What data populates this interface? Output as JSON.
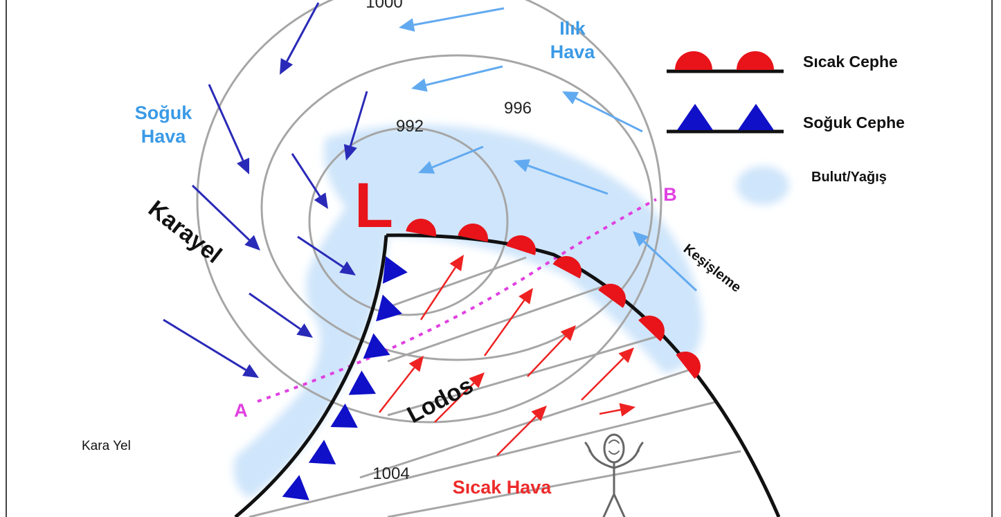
{
  "colors": {
    "isobar": "#a6a6a6",
    "cloud": "#cfe5fb",
    "warm_front": "#e8141a",
    "cold_front": "#1010c8",
    "cold_arrow": "#2a2ab8",
    "warm_arrow": "#ee2222",
    "moist_arrow": "#62aaf0",
    "section_line": "#e040e0",
    "air_label_blue": "#3a9ae6",
    "warm_label": "#ee2a2a",
    "black": "#111111"
  },
  "isobars": {
    "i992": "992",
    "i996": "996",
    "i1000": "1000",
    "i1004": "1004"
  },
  "low_symbol": "L",
  "labels": {
    "warm_air": "Ilık Hava",
    "cold_air": "Soğuk Hava",
    "karayel": "Karayel",
    "lodos": "Lodos",
    "kesisme": "Keşişleme",
    "kara_yel": "Kara Yel",
    "hot_air": "Sıcak Hava",
    "point_a": "A",
    "point_b": "B"
  },
  "legend": {
    "warm_front": "Sıcak Cephe",
    "cold_front": "Soğuk Cephe",
    "cloud": "Bulut/Yağış"
  }
}
